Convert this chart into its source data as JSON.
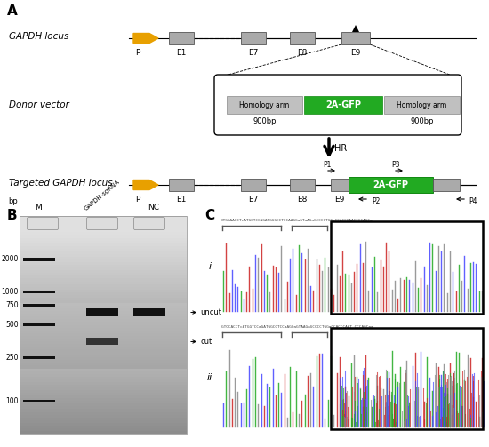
{
  "panel_A": {
    "gapdh_locus_label": "GAPDH locus",
    "donor_vector_label": "Donor vector",
    "targeted_label": "Targeted GAPDH locus",
    "hr_label": "HR",
    "gfp_label": "2A-GFP",
    "bp_900": "900bp",
    "primer_labels": [
      "P1",
      "P2",
      "P3",
      "P4"
    ],
    "exon_labels": [
      "P",
      "E1",
      "E7",
      "E8",
      "E9"
    ],
    "arrow_color": "#E8A000",
    "exon_color": "#AAAAAA",
    "gfp_color": "#22AA22",
    "homology_color": "#C0C0C0",
    "homology_label": "Homology arm"
  },
  "panel_B": {
    "lane_labels": [
      "M",
      "GAPDH-sgRNA",
      "NC"
    ],
    "bp_labels": [
      "2000",
      "1000",
      "750",
      "500",
      "250",
      "100"
    ],
    "annotations": [
      "uncut",
      "cut"
    ]
  },
  "panel_C": {
    "label_i": "i",
    "label_ii": "ii"
  },
  "figure_bg": "#FFFFFF",
  "black": "#000000",
  "gray_line": "#888888"
}
